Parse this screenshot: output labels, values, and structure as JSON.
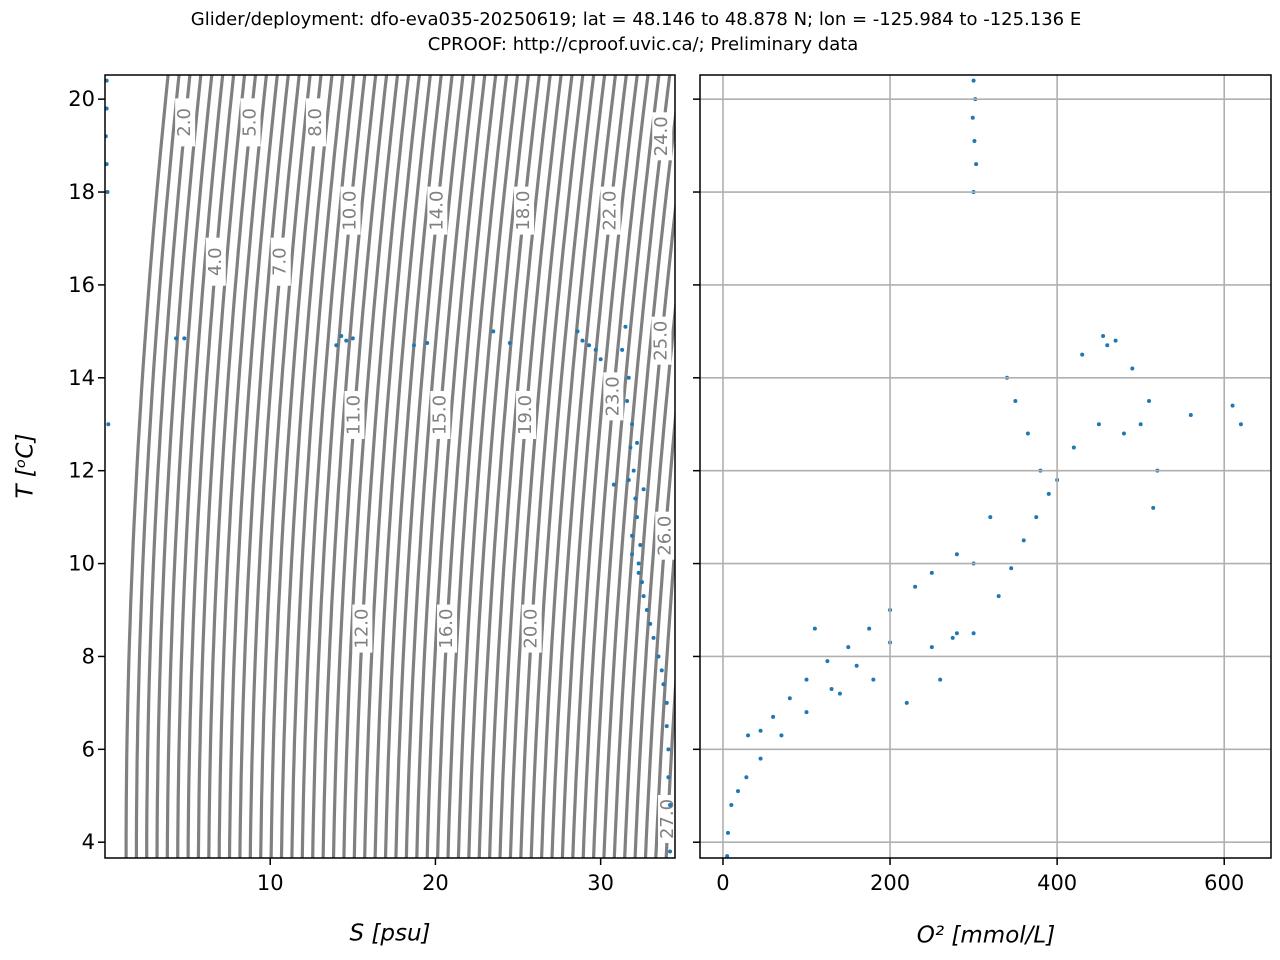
{
  "chart_data": [
    {
      "type": "scatter",
      "title": "Glider/deployment: dfo-eva035-20250619; lat = 48.146 to 48.878 N; lon = -125.984 to -125.136 E",
      "subtitle": "CPROOF: http://cproof.uvic.ca/; Preliminary data",
      "x_label": "S [psu]",
      "y_label": "T [ᵒC]",
      "xlim": [
        0,
        34.5
      ],
      "ylim": [
        3.66,
        20.52
      ],
      "xticks": [
        10,
        20,
        30
      ],
      "yticks": [
        4,
        6,
        8,
        10,
        12,
        14,
        16,
        18,
        20
      ],
      "grid": false,
      "contour_color": "#808080",
      "contour_levels": [
        1.0,
        1.5,
        2.0,
        2.5,
        3.0,
        3.5,
        4.0,
        4.5,
        5.0,
        5.5,
        6.0,
        6.5,
        7.0,
        7.5,
        8.0,
        8.5,
        9.0,
        9.5,
        10.0,
        10.5,
        11.0,
        11.5,
        12.0,
        12.5,
        13.0,
        13.5,
        14.0,
        14.5,
        15.0,
        15.5,
        16.0,
        16.5,
        17.0,
        17.5,
        18.0,
        18.5,
        19.0,
        19.5,
        20.0,
        20.5,
        21.0,
        21.5,
        22.0,
        22.5,
        23.0,
        23.5,
        24.0,
        24.5,
        25.0,
        25.5,
        26.0,
        26.5,
        27.0
      ],
      "contour_labels": [
        {
          "value": 2,
          "label": "2.0"
        },
        {
          "value": 5,
          "label": "5.0"
        },
        {
          "value": 8,
          "label": "8.0"
        },
        {
          "value": 24,
          "label": "24.0"
        },
        {
          "value": 10,
          "label": "10.0"
        },
        {
          "value": 14,
          "label": "14.0"
        },
        {
          "value": 18,
          "label": "18.0"
        },
        {
          "value": 22,
          "label": "22.0"
        },
        {
          "value": 4,
          "label": "4.0"
        },
        {
          "value": 7,
          "label": "7.0"
        },
        {
          "value": 23,
          "label": "23.0"
        },
        {
          "value": 25,
          "label": "25.0"
        },
        {
          "value": 11,
          "label": "11.0"
        },
        {
          "value": 15,
          "label": "15.0"
        },
        {
          "value": 19,
          "label": "19.0"
        },
        {
          "value": 26,
          "label": "26.0"
        },
        {
          "value": 12,
          "label": "12.0"
        },
        {
          "value": 16,
          "label": "16.0"
        },
        {
          "value": 20,
          "label": "20.0"
        },
        {
          "value": 27,
          "label": "27.0"
        }
      ],
      "series": [
        {
          "color": "#1f77b4",
          "x": [
            0.1,
            0.1,
            0.05,
            0.1,
            0.15,
            0.2,
            4.3,
            4.8,
            14.0,
            14.3,
            14.6,
            15.0,
            18.7,
            19.5,
            23.5,
            24.5,
            28.6,
            28.9,
            29.3,
            29.7,
            30.0,
            30.8,
            31.5,
            31.3,
            31.7,
            31.6,
            31.9,
            31.8,
            32.0,
            31.7,
            32.1,
            32.2,
            31.9,
            32.4,
            32.3,
            32.5,
            32.6,
            32.8,
            33.0,
            33.2,
            33.5,
            33.7,
            33.8,
            34.0,
            34.0,
            34.1,
            34.1,
            34.2,
            34.2,
            32.2,
            32.6,
            31.9,
            32.3
          ],
          "y": [
            20.4,
            19.8,
            19.2,
            18.6,
            18.0,
            13.0,
            14.85,
            14.85,
            14.7,
            14.9,
            14.8,
            14.85,
            14.7,
            14.75,
            15.0,
            14.75,
            15.0,
            14.8,
            14.7,
            14.6,
            14.4,
            11.7,
            15.1,
            14.6,
            14.0,
            13.5,
            13.0,
            12.5,
            12.0,
            11.8,
            11.4,
            11.0,
            10.6,
            10.4,
            10.0,
            9.6,
            9.3,
            9.0,
            8.7,
            8.4,
            8.0,
            7.7,
            7.4,
            7.0,
            6.5,
            6.0,
            5.4,
            4.8,
            3.8,
            12.6,
            11.6,
            10.2,
            9.8
          ]
        }
      ]
    },
    {
      "type": "scatter",
      "x_label": "O² [mmol/L]",
      "xlim": [
        -27.5,
        656
      ],
      "ylim": [
        3.66,
        20.52
      ],
      "xticks": [
        0,
        200,
        400,
        600
      ],
      "yticks": [
        4,
        6,
        8,
        10,
        12,
        14,
        16,
        18,
        20
      ],
      "grid": true,
      "series": [
        {
          "color": "#1f77b4",
          "x": [
            300,
            302,
            299,
            301,
            303,
            300,
            5,
            6,
            10,
            18,
            28,
            45,
            70,
            100,
            130,
            160,
            200,
            30,
            45,
            60,
            80,
            100,
            125,
            150,
            175,
            200,
            230,
            250,
            280,
            250,
            275,
            300,
            330,
            345,
            360,
            375,
            390,
            420,
            450,
            480,
            500,
            340,
            350,
            365,
            380,
            400,
            430,
            455,
            460,
            470,
            490,
            510,
            520,
            560,
            620,
            610,
            515,
            300,
            320,
            280,
            260,
            220,
            180,
            140,
            110
          ],
          "y": [
            20.4,
            20.0,
            19.6,
            19.1,
            18.6,
            18.0,
            3.7,
            4.2,
            4.8,
            5.1,
            5.4,
            5.8,
            6.3,
            6.8,
            7.3,
            7.8,
            8.3,
            6.3,
            6.4,
            6.7,
            7.1,
            7.5,
            7.9,
            8.2,
            8.6,
            9.0,
            9.5,
            9.8,
            10.2,
            8.2,
            8.4,
            8.5,
            9.3,
            9.9,
            10.5,
            11.0,
            11.5,
            12.5,
            13.0,
            12.8,
            13.0,
            14.0,
            13.5,
            12.8,
            12.0,
            11.8,
            14.5,
            14.9,
            14.7,
            14.8,
            14.2,
            13.5,
            12.0,
            13.2,
            13.0,
            13.4,
            11.2,
            10.0,
            11.0,
            8.5,
            7.5,
            7.0,
            7.5,
            7.2,
            8.6
          ]
        }
      ]
    }
  ]
}
